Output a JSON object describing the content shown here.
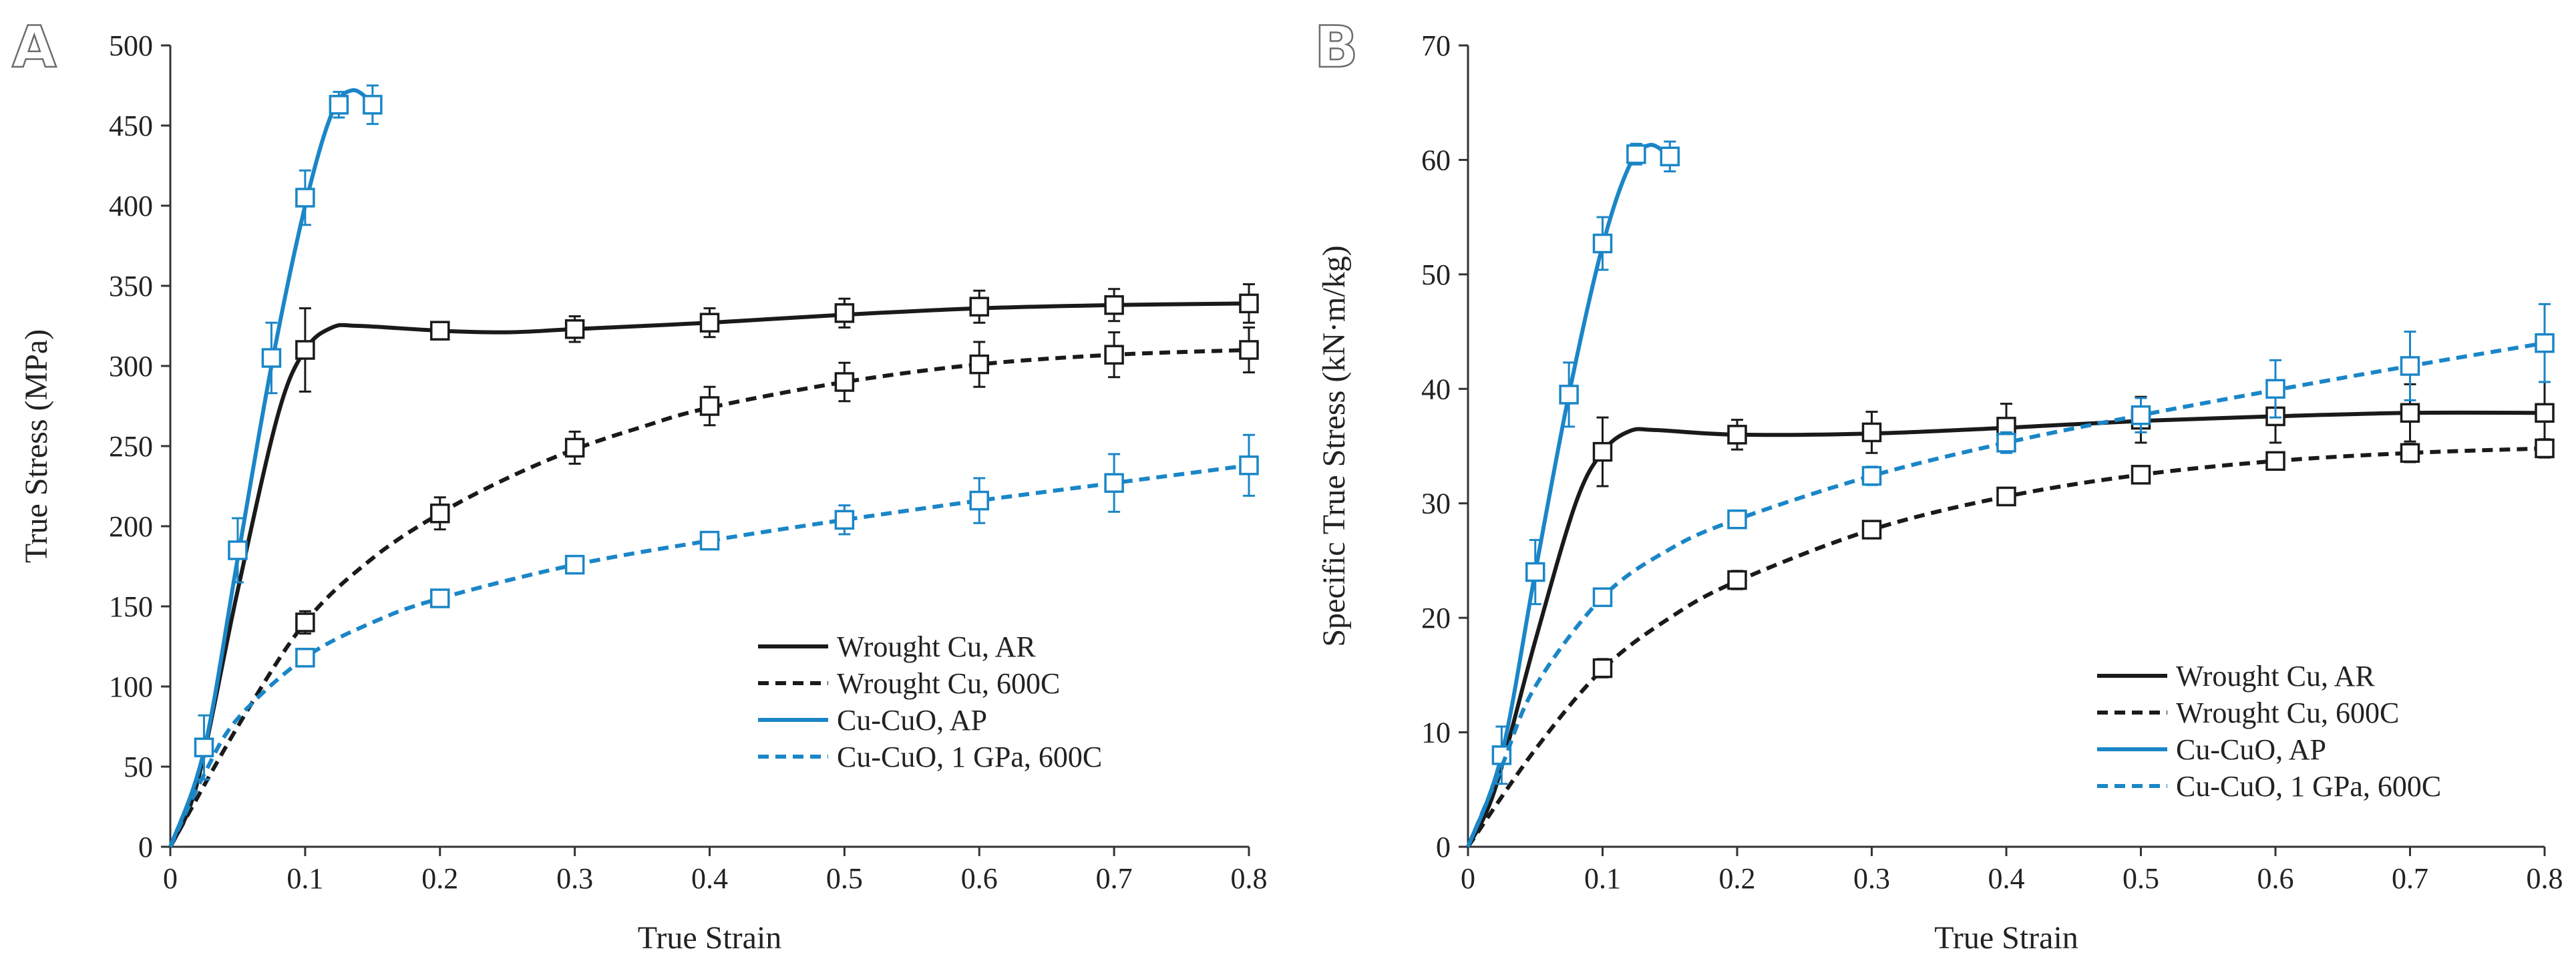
{
  "colors": {
    "black": "#1a1a1a",
    "blue": "#1a86c7"
  },
  "chart_data": [
    {
      "panel_label": "A",
      "type": "line",
      "xlabel": "True Strain",
      "ylabel": "True Stress (MPa)",
      "xlim": [
        0,
        0.8
      ],
      "ylim": [
        0,
        500
      ],
      "xticks": [
        0,
        0.1,
        0.2,
        0.3,
        0.4,
        0.5,
        0.6,
        0.7,
        0.8
      ],
      "xtick_labels": [
        "0",
        "0.1",
        "0.2",
        "0.3",
        "0.4",
        "0.5",
        "0.6",
        "0.7",
        "0.8"
      ],
      "yticks": [
        0,
        50,
        100,
        150,
        200,
        250,
        300,
        350,
        400,
        450,
        500
      ],
      "ytick_labels": [
        "0",
        "50",
        "100",
        "150",
        "200",
        "250",
        "300",
        "350",
        "400",
        "450",
        "500"
      ],
      "legend_position": "bottom-right",
      "series": [
        {
          "name": "Wrought Cu, AR",
          "color": "black",
          "dashed": false,
          "curve": [
            [
              0,
              0
            ],
            [
              0.02,
              40
            ],
            [
              0.05,
              160
            ],
            [
              0.08,
              270
            ],
            [
              0.1,
              310
            ],
            [
              0.12,
              324
            ],
            [
              0.14,
              325
            ],
            [
              0.2,
              322
            ],
            [
              0.25,
              321
            ],
            [
              0.3,
              323
            ],
            [
              0.4,
              327
            ],
            [
              0.5,
              332
            ],
            [
              0.6,
              336
            ],
            [
              0.7,
              338
            ],
            [
              0.8,
              339
            ]
          ],
          "points": [
            [
              0.1,
              310,
              26
            ],
            [
              0.2,
              322,
              5
            ],
            [
              0.3,
              323,
              8
            ],
            [
              0.4,
              327,
              9
            ],
            [
              0.5,
              333,
              9
            ],
            [
              0.6,
              337,
              10
            ],
            [
              0.7,
              338,
              10
            ],
            [
              0.8,
              339,
              12
            ]
          ]
        },
        {
          "name": "Wrought Cu, 600C",
          "color": "black",
          "dashed": true,
          "curve": [
            [
              0,
              0
            ],
            [
              0.05,
              75
            ],
            [
              0.1,
              140
            ],
            [
              0.15,
              180
            ],
            [
              0.2,
              208
            ],
            [
              0.25,
              230
            ],
            [
              0.3,
              248
            ],
            [
              0.35,
              262
            ],
            [
              0.4,
              274
            ],
            [
              0.5,
              290
            ],
            [
              0.6,
              301
            ],
            [
              0.7,
              307
            ],
            [
              0.8,
              310
            ]
          ],
          "points": [
            [
              0.1,
              140,
              7
            ],
            [
              0.2,
              208,
              10
            ],
            [
              0.3,
              249,
              10
            ],
            [
              0.4,
              275,
              12
            ],
            [
              0.5,
              290,
              12
            ],
            [
              0.6,
              301,
              14
            ],
            [
              0.7,
              307,
              14
            ],
            [
              0.8,
              310,
              14
            ]
          ]
        },
        {
          "name": "Cu-CuO, AP",
          "color": "blue",
          "dashed": false,
          "curve": [
            [
              0,
              0
            ],
            [
              0.025,
              60
            ],
            [
              0.05,
              180
            ],
            [
              0.075,
              300
            ],
            [
              0.1,
              400
            ],
            [
              0.12,
              458
            ],
            [
              0.135,
              472
            ],
            [
              0.15,
              464
            ]
          ],
          "points": [
            [
              0.025,
              62,
              20
            ],
            [
              0.05,
              185,
              20
            ],
            [
              0.075,
              305,
              22
            ],
            [
              0.1,
              405,
              17
            ],
            [
              0.125,
              463,
              8
            ],
            [
              0.15,
              463,
              12
            ]
          ]
        },
        {
          "name": "Cu-CuO, 1 GPa, 600C",
          "color": "blue",
          "dashed": true,
          "curve": [
            [
              0,
              0
            ],
            [
              0.025,
              45
            ],
            [
              0.05,
              80
            ],
            [
              0.1,
              118
            ],
            [
              0.15,
              140
            ],
            [
              0.2,
              155
            ],
            [
              0.3,
              176
            ],
            [
              0.4,
              191
            ],
            [
              0.5,
              204
            ],
            [
              0.6,
              216
            ],
            [
              0.7,
              227
            ],
            [
              0.8,
              238
            ]
          ],
          "points": [
            [
              0.1,
              118,
              4
            ],
            [
              0.2,
              155,
              4
            ],
            [
              0.3,
              176,
              5
            ],
            [
              0.4,
              191,
              5
            ],
            [
              0.5,
              204,
              9
            ],
            [
              0.6,
              216,
              14
            ],
            [
              0.7,
              227,
              18
            ],
            [
              0.8,
              238,
              19
            ]
          ]
        }
      ]
    },
    {
      "panel_label": "B",
      "type": "line",
      "xlabel": "True Strain",
      "ylabel": "Specific True Stress (kN·m/kg)",
      "xlim": [
        0,
        0.8
      ],
      "ylim": [
        0,
        70
      ],
      "xticks": [
        0,
        0.1,
        0.2,
        0.3,
        0.4,
        0.5,
        0.6,
        0.7,
        0.8
      ],
      "xtick_labels": [
        "0",
        "0.1",
        "0.2",
        "0.3",
        "0.4",
        "0.5",
        "0.6",
        "0.7",
        "0.8"
      ],
      "yticks": [
        0,
        10,
        20,
        30,
        40,
        50,
        60,
        70
      ],
      "ytick_labels": [
        "0",
        "10",
        "20",
        "30",
        "40",
        "50",
        "60",
        "70"
      ],
      "legend_position": "bottom-right",
      "series": [
        {
          "name": "Wrought Cu, AR",
          "color": "black",
          "dashed": false,
          "curve": [
            [
              0,
              0
            ],
            [
              0.02,
              5
            ],
            [
              0.05,
              18
            ],
            [
              0.08,
              30
            ],
            [
              0.1,
              34.5
            ],
            [
              0.12,
              36.3
            ],
            [
              0.14,
              36.4
            ],
            [
              0.2,
              36
            ],
            [
              0.3,
              36.1
            ],
            [
              0.4,
              36.6
            ],
            [
              0.5,
              37.2
            ],
            [
              0.6,
              37.6
            ],
            [
              0.7,
              37.9
            ],
            [
              0.8,
              37.9
            ]
          ],
          "points": [
            [
              0.1,
              34.5,
              3
            ],
            [
              0.2,
              36,
              1.3
            ],
            [
              0.3,
              36.2,
              1.8
            ],
            [
              0.4,
              36.7,
              2
            ],
            [
              0.5,
              37.3,
              2
            ],
            [
              0.6,
              37.6,
              2.3
            ],
            [
              0.7,
              37.9,
              2.5
            ],
            [
              0.8,
              37.9,
              2.7
            ]
          ]
        },
        {
          "name": "Wrought Cu, 600C",
          "color": "black",
          "dashed": true,
          "curve": [
            [
              0,
              0
            ],
            [
              0.05,
              8.5
            ],
            [
              0.1,
              15.5
            ],
            [
              0.15,
              20
            ],
            [
              0.2,
              23.2
            ],
            [
              0.3,
              27.7
            ],
            [
              0.4,
              30.6
            ],
            [
              0.5,
              32.5
            ],
            [
              0.6,
              33.7
            ],
            [
              0.7,
              34.4
            ],
            [
              0.8,
              34.8
            ]
          ],
          "points": [
            [
              0.1,
              15.6,
              0.8
            ],
            [
              0.2,
              23.3,
              0.8
            ],
            [
              0.3,
              27.7,
              0.7
            ],
            [
              0.4,
              30.6,
              0.7
            ],
            [
              0.5,
              32.5,
              0.7
            ],
            [
              0.6,
              33.7,
              0.7
            ],
            [
              0.7,
              34.4,
              0.8
            ],
            [
              0.8,
              34.8,
              0.8
            ]
          ]
        },
        {
          "name": "Cu-CuO, AP",
          "color": "blue",
          "dashed": false,
          "curve": [
            [
              0,
              0
            ],
            [
              0.025,
              8
            ],
            [
              0.05,
              24
            ],
            [
              0.075,
              39.5
            ],
            [
              0.1,
              52.5
            ],
            [
              0.12,
              59.5
            ],
            [
              0.135,
              61.3
            ],
            [
              0.15,
              60.3
            ]
          ],
          "points": [
            [
              0.025,
              8,
              2.5
            ],
            [
              0.05,
              24,
              2.8
            ],
            [
              0.075,
              39.5,
              2.8
            ],
            [
              0.1,
              52.7,
              2.3
            ],
            [
              0.125,
              60.5,
              0.9
            ],
            [
              0.15,
              60.3,
              1.3
            ]
          ]
        },
        {
          "name": "Cu-CuO, 1 GPa, 600C",
          "color": "blue",
          "dashed": true,
          "curve": [
            [
              0,
              0
            ],
            [
              0.025,
              7
            ],
            [
              0.05,
              14
            ],
            [
              0.1,
              21.8
            ],
            [
              0.15,
              26
            ],
            [
              0.2,
              28.6
            ],
            [
              0.3,
              32.4
            ],
            [
              0.4,
              35.3
            ],
            [
              0.5,
              37.7
            ],
            [
              0.6,
              39.9
            ],
            [
              0.7,
              42
            ],
            [
              0.8,
              44
            ]
          ],
          "points": [
            [
              0.1,
              21.8,
              0.6
            ],
            [
              0.2,
              28.6,
              0.7
            ],
            [
              0.3,
              32.4,
              0.8
            ],
            [
              0.4,
              35.3,
              0.9
            ],
            [
              0.5,
              37.7,
              1.5
            ],
            [
              0.6,
              40,
              2.5
            ],
            [
              0.7,
              42,
              3
            ],
            [
              0.8,
              44,
              3.4
            ]
          ]
        }
      ]
    }
  ]
}
